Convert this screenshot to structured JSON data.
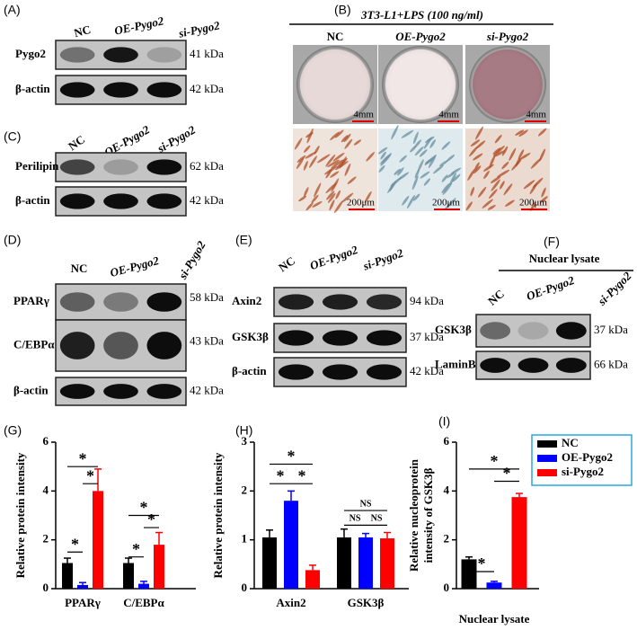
{
  "blots": [
    {
      "panel": "(A)",
      "lanes": [
        "NC",
        "OE-Pygo2",
        "si-Pygo2"
      ],
      "rows": [
        {
          "protein": "Pygo2",
          "size": "41 kDa"
        },
        {
          "protein": "β-actin",
          "size": "42 kDa"
        }
      ]
    },
    {
      "panel": "(C)",
      "lanes": [
        "NC",
        "OE-Pygo2",
        "si-Pygo2"
      ],
      "rows": [
        {
          "protein": "Perilipin",
          "size": "62 kDa"
        },
        {
          "protein": "β-actin",
          "size": "42 kDa"
        }
      ]
    },
    {
      "panel": "(D)",
      "lanes": [
        "NC",
        "OE-Pygo2",
        "si-Pygo2"
      ],
      "rows": [
        {
          "protein": "PPARγ",
          "size": "58 kDa"
        },
        {
          "protein": "C/EBPα",
          "size": "43 kDa"
        },
        {
          "protein": "β-actin",
          "size": "42 kDa"
        }
      ]
    },
    {
      "panel": "(E)",
      "lanes": [
        "NC",
        "OE-Pygo2",
        "si-Pygo2"
      ],
      "rows": [
        {
          "protein": "Axin2",
          "size": "94 kDa"
        },
        {
          "protein": "GSK3β",
          "size": "37 kDa"
        },
        {
          "protein": "β-actin",
          "size": "42 kDa"
        }
      ]
    },
    {
      "panel": "(F)",
      "header": "Nuclear lysate",
      "lanes": [
        "NC",
        "OE-Pygo2",
        "si-Pygo2"
      ],
      "rows": [
        {
          "protein": "GSK3β",
          "size": "37 kDa"
        },
        {
          "protein": "LaminB",
          "size": "66 kDa"
        }
      ]
    }
  ],
  "micrographs": {
    "panel": "(B)",
    "title": "3T3-L1+LPS (100 ng/ml)",
    "lanes": [
      "NC",
      "OE-Pygo2",
      "si-Pygo2"
    ],
    "scale_top": [
      "4mm",
      "4mm",
      "4mm"
    ],
    "scale_bottom": [
      "200μm",
      "200μm",
      "200μm"
    ]
  },
  "chart_data": [
    {
      "type": "bar",
      "panel": "(G)",
      "ylabel": "Relative protein intensity",
      "categories": [
        "PPARγ",
        "C/EBPα"
      ],
      "ylim": [
        0,
        6
      ],
      "yticks": [
        0,
        2,
        4,
        6
      ],
      "series": [
        {
          "name": "NC",
          "color": "#000000",
          "values": [
            1.05,
            1.05
          ],
          "errors": [
            0.2,
            0.2
          ]
        },
        {
          "name": "OE-Pygo2",
          "color": "#0000ff",
          "values": [
            0.15,
            0.2
          ],
          "errors": [
            0.1,
            0.1
          ]
        },
        {
          "name": "si-Pygo2",
          "color": "#ff0000",
          "values": [
            4.0,
            1.8
          ],
          "errors": [
            0.9,
            0.5
          ]
        }
      ],
      "annotations": [
        "*",
        "*",
        "*",
        "*",
        "*",
        "*"
      ]
    },
    {
      "type": "bar",
      "panel": "(H)",
      "ylabel": "Relative protein intensity",
      "categories": [
        "Axin2",
        "GSK3β"
      ],
      "ylim": [
        0,
        3
      ],
      "yticks": [
        0,
        1,
        2,
        3
      ],
      "series": [
        {
          "name": "NC",
          "color": "#000000",
          "values": [
            1.05,
            1.05
          ],
          "errors": [
            0.15,
            0.17
          ]
        },
        {
          "name": "OE-Pygo2",
          "color": "#0000ff",
          "values": [
            1.8,
            1.05
          ],
          "errors": [
            0.2,
            0.08
          ]
        },
        {
          "name": "si-Pygo2",
          "color": "#ff0000",
          "values": [
            0.38,
            1.03
          ],
          "errors": [
            0.1,
            0.12
          ]
        }
      ],
      "annotations": [
        "*",
        "*",
        "*",
        "NS",
        "NS",
        "NS"
      ]
    },
    {
      "type": "bar",
      "panel": "(I)",
      "ylabel": [
        "Relative nucleoprotein",
        "intensity of GSK3β"
      ],
      "categories": [
        "Nuclear lysate"
      ],
      "ylim": [
        0,
        6
      ],
      "yticks": [
        0,
        2,
        4,
        6
      ],
      "series": [
        {
          "name": "NC",
          "color": "#000000",
          "values": [
            1.2
          ],
          "errors": [
            0.1
          ]
        },
        {
          "name": "OE-Pygo2",
          "color": "#0000ff",
          "values": [
            0.25
          ],
          "errors": [
            0.05
          ]
        },
        {
          "name": "si-Pygo2",
          "color": "#ff0000",
          "values": [
            3.75
          ],
          "errors": [
            0.15
          ]
        }
      ],
      "annotations": [
        "*",
        "*",
        "*"
      ],
      "legend": "upper right"
    }
  ]
}
